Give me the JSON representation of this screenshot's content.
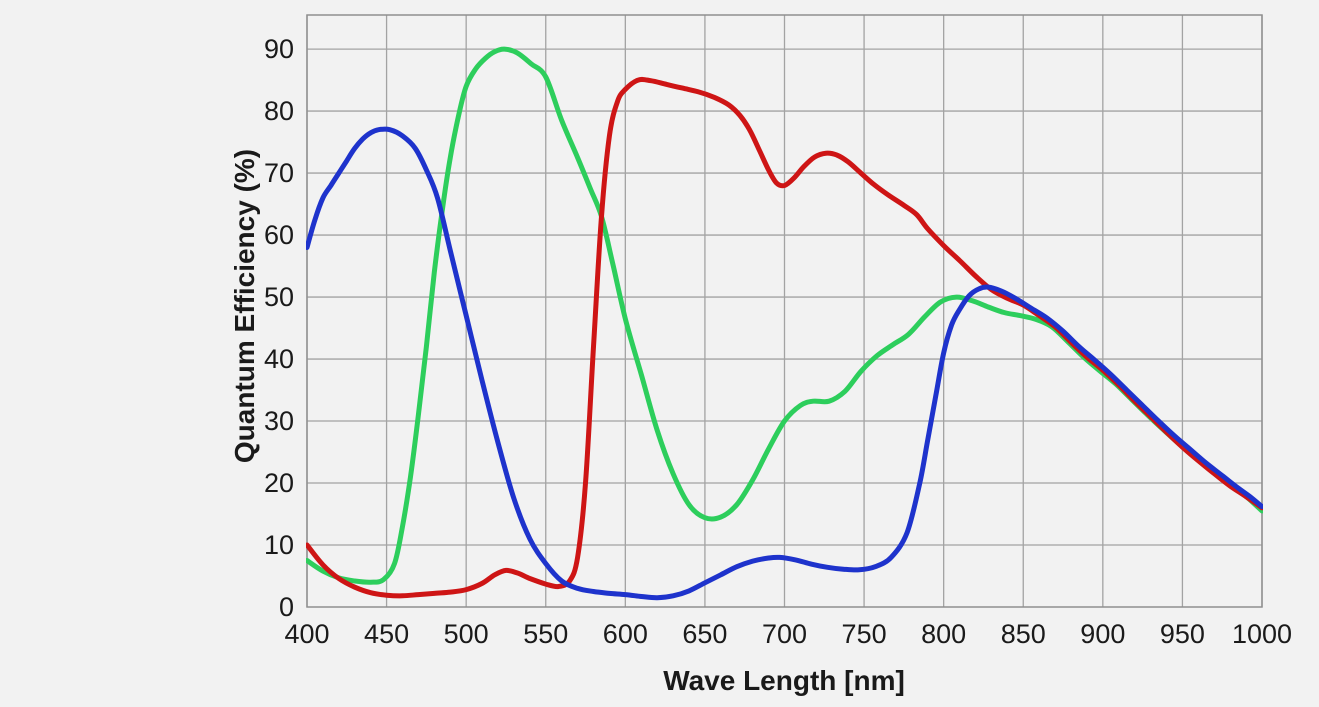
{
  "page": {
    "background_color": "#f2f2f2",
    "grid_color": "#a3a3a3",
    "frame_color": "#8f8f8f",
    "text_color": "#1a1a1a"
  },
  "chart_data": {
    "type": "line",
    "title": "",
    "xlabel": "Wave Length [nm]",
    "ylabel": "Quantum Efficiency (%)",
    "xlim": [
      400,
      1000
    ],
    "ylim": [
      0,
      95.5
    ],
    "x_ticks": [
      400,
      450,
      500,
      550,
      600,
      650,
      700,
      750,
      800,
      850,
      900,
      950,
      1000
    ],
    "y_ticks": [
      0,
      10,
      20,
      30,
      40,
      50,
      60,
      70,
      80,
      90
    ],
    "grid": true,
    "legend_position": "none",
    "series": [
      {
        "name": "green-channel",
        "color": "#2dce5c",
        "points": [
          [
            400,
            7.5
          ],
          [
            410,
            5.8
          ],
          [
            420,
            4.7
          ],
          [
            430,
            4.2
          ],
          [
            440,
            4.0
          ],
          [
            448,
            4.4
          ],
          [
            455,
            7
          ],
          [
            460,
            13
          ],
          [
            465,
            21
          ],
          [
            470,
            31
          ],
          [
            475,
            42
          ],
          [
            480,
            54
          ],
          [
            485,
            64
          ],
          [
            490,
            72.5
          ],
          [
            495,
            79
          ],
          [
            500,
            84
          ],
          [
            506,
            86.8
          ],
          [
            512,
            88.5
          ],
          [
            518,
            89.6
          ],
          [
            524,
            90
          ],
          [
            532,
            89.4
          ],
          [
            541,
            87.6
          ],
          [
            550,
            85.5
          ],
          [
            560,
            78.5
          ],
          [
            570,
            72.5
          ],
          [
            578,
            67.5
          ],
          [
            585,
            63
          ],
          [
            592,
            55.5
          ],
          [
            600,
            46.5
          ],
          [
            610,
            37.5
          ],
          [
            620,
            28.5
          ],
          [
            630,
            21.5
          ],
          [
            640,
            16.5
          ],
          [
            650,
            14.4
          ],
          [
            660,
            14.5
          ],
          [
            670,
            16.5
          ],
          [
            680,
            20.5
          ],
          [
            690,
            25.5
          ],
          [
            700,
            30
          ],
          [
            710,
            32.5
          ],
          [
            718,
            33.2
          ],
          [
            728,
            33.2
          ],
          [
            738,
            34.8
          ],
          [
            748,
            38
          ],
          [
            758,
            40.5
          ],
          [
            768,
            42.3
          ],
          [
            778,
            44
          ],
          [
            788,
            46.8
          ],
          [
            798,
            49.2
          ],
          [
            808,
            50
          ],
          [
            818,
            49.4
          ],
          [
            828,
            48.4
          ],
          [
            838,
            47.5
          ],
          [
            848,
            47
          ],
          [
            858,
            46.4
          ],
          [
            868,
            45.2
          ],
          [
            878,
            42.8
          ],
          [
            888,
            40.3
          ],
          [
            898,
            38.1
          ],
          [
            908,
            36
          ],
          [
            918,
            33.5
          ],
          [
            928,
            31
          ],
          [
            938,
            28.6
          ],
          [
            948,
            26.3
          ],
          [
            958,
            24.2
          ],
          [
            968,
            22.2
          ],
          [
            978,
            20.2
          ],
          [
            988,
            18.3
          ],
          [
            1000,
            15.5
          ]
        ]
      },
      {
        "name": "red-channel",
        "color": "#ce1515",
        "points": [
          [
            400,
            10
          ],
          [
            410,
            6.8
          ],
          [
            420,
            4.6
          ],
          [
            430,
            3.2
          ],
          [
            440,
            2.3
          ],
          [
            450,
            1.9
          ],
          [
            460,
            1.8
          ],
          [
            470,
            2.0
          ],
          [
            480,
            2.2
          ],
          [
            490,
            2.4
          ],
          [
            500,
            2.8
          ],
          [
            510,
            3.8
          ],
          [
            518,
            5.2
          ],
          [
            525,
            5.9
          ],
          [
            532,
            5.5
          ],
          [
            540,
            4.6
          ],
          [
            550,
            3.7
          ],
          [
            558,
            3.3
          ],
          [
            565,
            4.2
          ],
          [
            570,
            8
          ],
          [
            575,
            20
          ],
          [
            580,
            42
          ],
          [
            585,
            63
          ],
          [
            590,
            76
          ],
          [
            595,
            81.5
          ],
          [
            600,
            83.5
          ],
          [
            608,
            85
          ],
          [
            616,
            84.9
          ],
          [
            626,
            84.3
          ],
          [
            636,
            83.7
          ],
          [
            646,
            83.1
          ],
          [
            656,
            82.2
          ],
          [
            665,
            81
          ],
          [
            672,
            79.3
          ],
          [
            678,
            77
          ],
          [
            684,
            73.8
          ],
          [
            690,
            70.5
          ],
          [
            695,
            68.4
          ],
          [
            700,
            68
          ],
          [
            706,
            69.2
          ],
          [
            712,
            71
          ],
          [
            719,
            72.6
          ],
          [
            726,
            73.2
          ],
          [
            733,
            72.9
          ],
          [
            740,
            71.8
          ],
          [
            748,
            70
          ],
          [
            756,
            68.2
          ],
          [
            765,
            66.5
          ],
          [
            775,
            64.8
          ],
          [
            783,
            63.3
          ],
          [
            790,
            61
          ],
          [
            800,
            58.3
          ],
          [
            810,
            55.9
          ],
          [
            820,
            53.4
          ],
          [
            830,
            51.2
          ],
          [
            840,
            49.8
          ],
          [
            850,
            48.7
          ],
          [
            860,
            47
          ],
          [
            870,
            45.2
          ],
          [
            880,
            42.7
          ],
          [
            890,
            40.3
          ],
          [
            900,
            38.2
          ],
          [
            910,
            35.8
          ],
          [
            920,
            33.2
          ],
          [
            930,
            30.7
          ],
          [
            940,
            28.2
          ],
          [
            950,
            25.8
          ],
          [
            960,
            23.6
          ],
          [
            970,
            21.5
          ],
          [
            980,
            19.5
          ],
          [
            990,
            17.8
          ],
          [
            1000,
            16
          ]
        ]
      },
      {
        "name": "blue-channel",
        "color": "#1e33cc",
        "points": [
          [
            400,
            58
          ],
          [
            405,
            62.5
          ],
          [
            410,
            66
          ],
          [
            415,
            68
          ],
          [
            420,
            70
          ],
          [
            425,
            72
          ],
          [
            430,
            74
          ],
          [
            435,
            75.5
          ],
          [
            440,
            76.5
          ],
          [
            445,
            77
          ],
          [
            452,
            77
          ],
          [
            460,
            76
          ],
          [
            468,
            74
          ],
          [
            475,
            70.5
          ],
          [
            482,
            66
          ],
          [
            490,
            57.5
          ],
          [
            500,
            47
          ],
          [
            510,
            36.5
          ],
          [
            520,
            26.5
          ],
          [
            530,
            17.5
          ],
          [
            540,
            11
          ],
          [
            550,
            7
          ],
          [
            560,
            4.2
          ],
          [
            570,
            3
          ],
          [
            580,
            2.5
          ],
          [
            590,
            2.2
          ],
          [
            600,
            2
          ],
          [
            610,
            1.7
          ],
          [
            620,
            1.5
          ],
          [
            630,
            1.8
          ],
          [
            640,
            2.6
          ],
          [
            650,
            3.9
          ],
          [
            660,
            5.2
          ],
          [
            670,
            6.5
          ],
          [
            680,
            7.4
          ],
          [
            690,
            7.9
          ],
          [
            697,
            8
          ],
          [
            707,
            7.6
          ],
          [
            717,
            6.9
          ],
          [
            727,
            6.4
          ],
          [
            737,
            6.1
          ],
          [
            747,
            6
          ],
          [
            757,
            6.5
          ],
          [
            767,
            8
          ],
          [
            777,
            12
          ],
          [
            785,
            20
          ],
          [
            790,
            27
          ],
          [
            795,
            34
          ],
          [
            800,
            41
          ],
          [
            805,
            45.5
          ],
          [
            810,
            48
          ],
          [
            816,
            50.2
          ],
          [
            822,
            51.3
          ],
          [
            828,
            51.6
          ],
          [
            836,
            51
          ],
          [
            845,
            49.8
          ],
          [
            855,
            48.2
          ],
          [
            865,
            46.6
          ],
          [
            875,
            44.5
          ],
          [
            885,
            42
          ],
          [
            895,
            39.8
          ],
          [
            905,
            37.5
          ],
          [
            915,
            35
          ],
          [
            925,
            32.5
          ],
          [
            935,
            30
          ],
          [
            945,
            27.6
          ],
          [
            955,
            25.4
          ],
          [
            965,
            23.2
          ],
          [
            975,
            21.2
          ],
          [
            985,
            19.2
          ],
          [
            993,
            17.7
          ],
          [
            1000,
            16.2
          ]
        ]
      }
    ]
  }
}
